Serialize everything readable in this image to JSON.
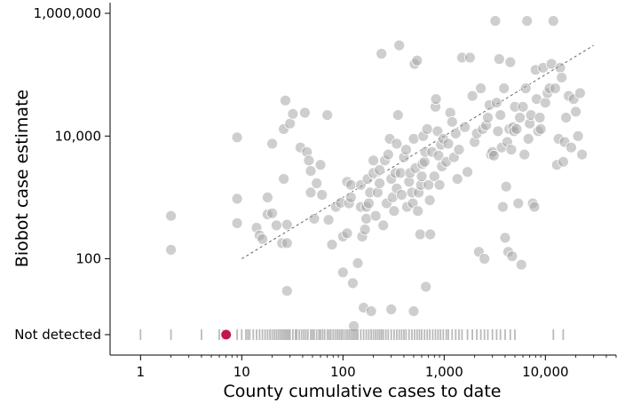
{
  "chart_data": {
    "type": "scatter",
    "xlabel": "County cumulative cases to date",
    "ylabel": "Biobot case estimate",
    "x_scale": "log",
    "y_scale": "log",
    "xlim": [
      0.5,
      50000
    ],
    "ylim": [
      6,
      1000000
    ],
    "x_ticks": [
      {
        "value": 1,
        "label": "1"
      },
      {
        "value": 10,
        "label": "10"
      },
      {
        "value": 100,
        "label": "100"
      },
      {
        "value": 1000,
        "label": "1,000"
      },
      {
        "value": 10000,
        "label": "10,000"
      }
    ],
    "y_ticks": [
      {
        "value": 100,
        "label": "100"
      },
      {
        "value": 10000,
        "label": "10,000"
      },
      {
        "value": 1000000,
        "label": "1,000,000"
      }
    ],
    "not_detected_label": "Not detected",
    "colors": {
      "point": "#a6a6a6",
      "rug": "#8c8c8c",
      "highlight": "#c0184a",
      "reference": "#555555"
    },
    "reference_line": {
      "x": [
        10,
        30000
      ],
      "y": [
        100,
        300000
      ],
      "style": "dashed"
    },
    "highlight_point": {
      "x": 7,
      "y": "not detected"
    },
    "detected_points": [
      [
        2,
        500
      ],
      [
        2,
        140
      ],
      [
        9,
        9500
      ],
      [
        9,
        950
      ],
      [
        9,
        380
      ],
      [
        14,
        320
      ],
      [
        15,
        240
      ],
      [
        16,
        210
      ],
      [
        18,
        1000
      ],
      [
        18,
        530
      ],
      [
        20,
        7500
      ],
      [
        20,
        550
      ],
      [
        22,
        350
      ],
      [
        25,
        180
      ],
      [
        26,
        13000
      ],
      [
        26,
        2000
      ],
      [
        27,
        38000
      ],
      [
        28,
        180
      ],
      [
        28,
        30
      ],
      [
        28,
        360
      ],
      [
        30,
        16000
      ],
      [
        32,
        23000
      ],
      [
        38,
        6500
      ],
      [
        42,
        24000
      ],
      [
        44,
        5500
      ],
      [
        46,
        4000
      ],
      [
        48,
        2700
      ],
      [
        48,
        1200
      ],
      [
        52,
        450
      ],
      [
        55,
        1700
      ],
      [
        60,
        3400
      ],
      [
        62,
        1100
      ],
      [
        70,
        22000
      ],
      [
        72,
        430
      ],
      [
        78,
        170
      ],
      [
        85,
        700
      ],
      [
        95,
        820
      ],
      [
        100,
        230
      ],
      [
        100,
        60
      ],
      [
        110,
        1800
      ],
      [
        110,
        260
      ],
      [
        115,
        800
      ],
      [
        120,
        1000
      ],
      [
        120,
        1600
      ],
      [
        125,
        40
      ],
      [
        128,
        8
      ],
      [
        140,
        85
      ],
      [
        150,
        1600
      ],
      [
        150,
        700
      ],
      [
        155,
        230
      ],
      [
        160,
        16
      ],
      [
        165,
        300
      ],
      [
        170,
        450
      ],
      [
        170,
        700
      ],
      [
        175,
        2000
      ],
      [
        180,
        800
      ],
      [
        185,
        1200
      ],
      [
        190,
        14
      ],
      [
        200,
        4000
      ],
      [
        200,
        2500
      ],
      [
        210,
        500
      ],
      [
        220,
        1200
      ],
      [
        230,
        1700
      ],
      [
        230,
        2800
      ],
      [
        240,
        220000
      ],
      [
        250,
        350
      ],
      [
        260,
        4000
      ],
      [
        270,
        800
      ],
      [
        280,
        5000
      ],
      [
        290,
        9000
      ],
      [
        300,
        15
      ],
      [
        300,
        2000
      ],
      [
        310,
        1000
      ],
      [
        320,
        600
      ],
      [
        330,
        2500
      ],
      [
        340,
        7500
      ],
      [
        340,
        1400
      ],
      [
        350,
        22000
      ],
      [
        360,
        300000
      ],
      [
        370,
        2500
      ],
      [
        380,
        1100
      ],
      [
        400,
        4500
      ],
      [
        420,
        6000
      ],
      [
        430,
        700
      ],
      [
        450,
        1800
      ],
      [
        460,
        2500
      ],
      [
        480,
        1200
      ],
      [
        490,
        800
      ],
      [
        500,
        14
      ],
      [
        500,
        9000
      ],
      [
        510,
        150000
      ],
      [
        520,
        3000
      ],
      [
        540,
        170000
      ],
      [
        550,
        600
      ],
      [
        560,
        1200
      ],
      [
        580,
        250
      ],
      [
        590,
        1600
      ],
      [
        600,
        2200
      ],
      [
        610,
        3500
      ],
      [
        620,
        10000
      ],
      [
        640,
        3800
      ],
      [
        650,
        5500
      ],
      [
        660,
        35
      ],
      [
        680,
        13000
      ],
      [
        700,
        1600
      ],
      [
        720,
        900
      ],
      [
        730,
        250
      ],
      [
        760,
        5500
      ],
      [
        800,
        2200
      ],
      [
        820,
        30000
      ],
      [
        830,
        40000
      ],
      [
        860,
        12000
      ],
      [
        880,
        4800
      ],
      [
        900,
        1600
      ],
      [
        930,
        7200
      ],
      [
        950,
        3200
      ],
      [
        980,
        9000
      ],
      [
        1050,
        3800
      ],
      [
        1100,
        7500
      ],
      [
        1150,
        24000
      ],
      [
        1200,
        17000
      ],
      [
        1250,
        4500
      ],
      [
        1300,
        11000
      ],
      [
        1350,
        2000
      ],
      [
        1400,
        6000
      ],
      [
        1500,
        190000
      ],
      [
        1600,
        14000
      ],
      [
        1700,
        2600
      ],
      [
        1800,
        190000
      ],
      [
        1900,
        45000
      ],
      [
        2000,
        8000
      ],
      [
        2100,
        11000
      ],
      [
        2200,
        130
      ],
      [
        2300,
        60000
      ],
      [
        2400,
        13000
      ],
      [
        2500,
        100
      ],
      [
        2600,
        15000
      ],
      [
        2700,
        20000
      ],
      [
        2800,
        32000
      ],
      [
        2900,
        5000
      ],
      [
        3000,
        5500
      ],
      [
        3100,
        4800
      ],
      [
        3200,
        750000
      ],
      [
        3300,
        35000
      ],
      [
        3400,
        12000
      ],
      [
        3500,
        180000
      ],
      [
        3600,
        22000
      ],
      [
        3700,
        6500
      ],
      [
        3800,
        700
      ],
      [
        3900,
        60000
      ],
      [
        4000,
        220
      ],
      [
        4100,
        1500
      ],
      [
        4200,
        8000
      ],
      [
        4300,
        130
      ],
      [
        4400,
        13000
      ],
      [
        4500,
        160000
      ],
      [
        4600,
        6000
      ],
      [
        4700,
        110
      ],
      [
        4800,
        14000
      ],
      [
        4900,
        12000
      ],
      [
        5000,
        30000
      ],
      [
        5200,
        13000
      ],
      [
        5400,
        800
      ],
      [
        5600,
        20000
      ],
      [
        5800,
        80
      ],
      [
        6000,
        30000
      ],
      [
        6200,
        5000
      ],
      [
        6400,
        60000
      ],
      [
        6600,
        750000
      ],
      [
        6800,
        9000
      ],
      [
        7000,
        16000
      ],
      [
        7200,
        22000
      ],
      [
        7500,
        800
      ],
      [
        7800,
        700
      ],
      [
        8000,
        120000
      ],
      [
        8200,
        40000
      ],
      [
        8500,
        12000
      ],
      [
        8800,
        20000
      ],
      [
        9000,
        13000
      ],
      [
        9500,
        130000
      ],
      [
        10000,
        35000
      ],
      [
        10500,
        50000
      ],
      [
        11000,
        60000
      ],
      [
        11500,
        150000
      ],
      [
        12000,
        750000
      ],
      [
        12500,
        60000
      ],
      [
        13000,
        3400
      ],
      [
        13500,
        9000
      ],
      [
        14000,
        130000
      ],
      [
        14500,
        90000
      ],
      [
        15000,
        3800
      ],
      [
        15500,
        8000
      ],
      [
        16000,
        20000
      ],
      [
        17000,
        45000
      ],
      [
        18000,
        6500
      ],
      [
        19000,
        40000
      ],
      [
        20000,
        25000
      ],
      [
        21000,
        10000
      ],
      [
        22000,
        50000
      ],
      [
        23000,
        5000
      ]
    ],
    "not_detected_x": [
      1,
      2,
      4,
      6,
      6.5,
      9,
      10,
      11,
      11.5,
      12,
      13,
      14,
      15,
      16,
      17,
      18,
      19,
      20,
      21,
      22,
      23,
      24,
      25,
      26,
      27,
      28,
      29,
      30,
      32,
      34,
      35,
      37,
      39,
      41,
      43,
      45,
      48,
      50,
      52,
      55,
      58,
      60,
      63,
      66,
      70,
      73,
      76,
      80,
      84,
      88,
      92,
      96,
      100,
      105,
      110,
      115,
      120,
      125,
      130,
      135,
      140,
      150,
      160,
      170,
      180,
      190,
      200,
      210,
      220,
      230,
      240,
      250,
      265,
      280,
      300,
      320,
      340,
      360,
      380,
      400,
      420,
      450,
      480,
      510,
      540,
      570,
      600,
      640,
      680,
      720,
      770,
      820,
      870,
      920,
      980,
      1050,
      1100,
      1200,
      1300,
      1400,
      1500,
      1700,
      1900,
      2100,
      2300,
      2500,
      2700,
      3000,
      3300,
      3600,
      4000,
      4500,
      5000,
      12000,
      15000
    ]
  }
}
